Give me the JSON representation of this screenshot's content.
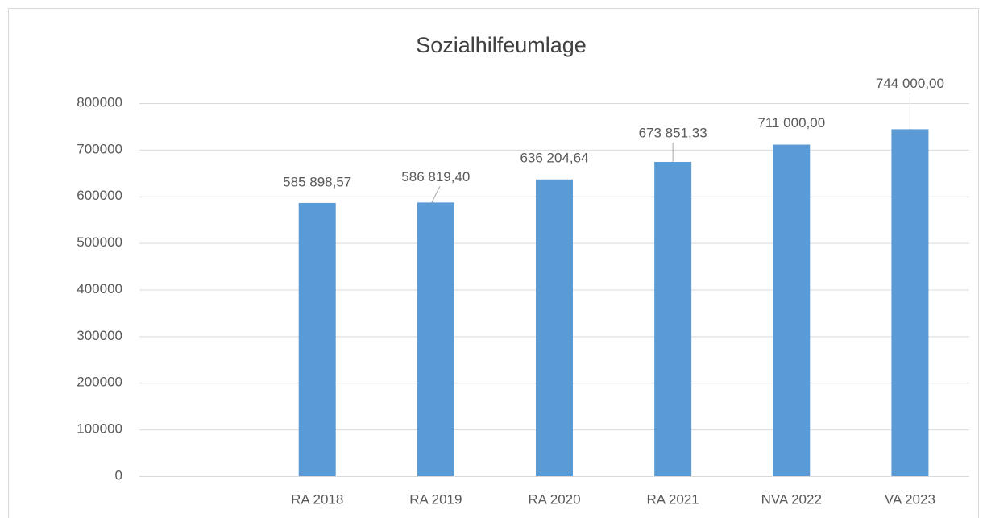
{
  "chart_data": {
    "type": "bar",
    "title": "Sozialhilfeumlage",
    "categories": [
      null,
      "RA 2018",
      "RA 2019",
      "RA 2020",
      "RA 2021",
      "NVA 2022",
      "VA 2023"
    ],
    "values": [
      null,
      585898.57,
      586819.4,
      636204.64,
      673851.33,
      711000.0,
      744000.0
    ],
    "value_labels": [
      null,
      "585 898,57",
      "586 819,40",
      "636 204,64",
      "673 851,33",
      "711 000,00",
      "744 000,00"
    ],
    "color": "#5b9bd5",
    "ylim": [
      0,
      800000
    ],
    "yticks": [
      0,
      100000,
      200000,
      300000,
      400000,
      500000,
      600000,
      700000,
      800000
    ],
    "grid": true
  }
}
